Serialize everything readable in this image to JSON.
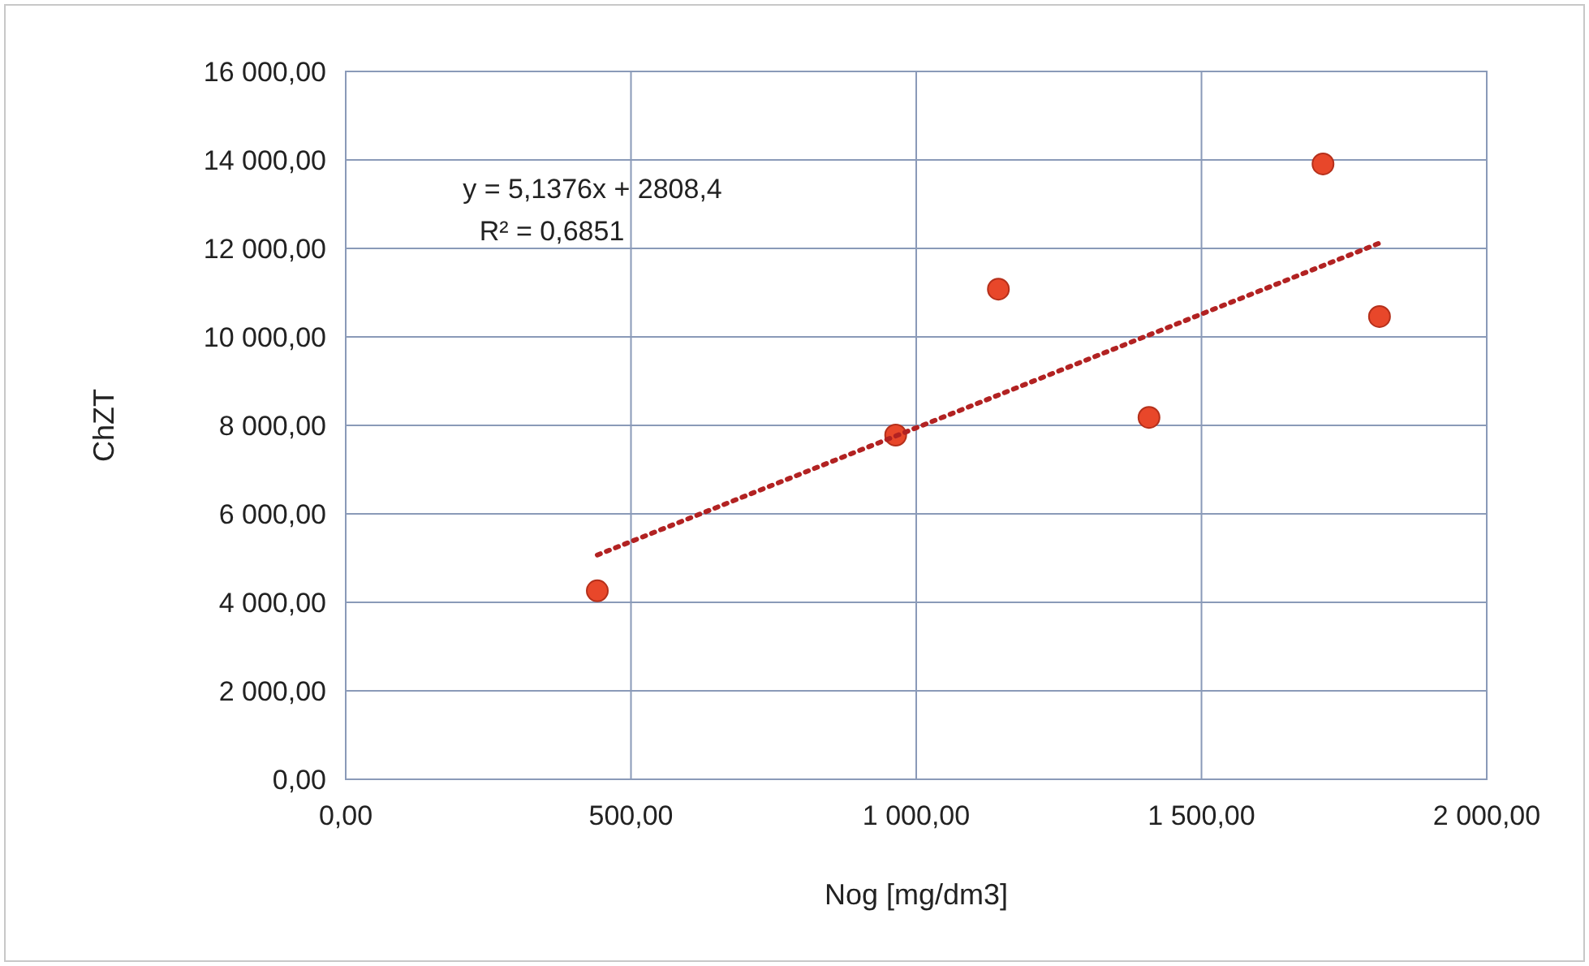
{
  "chart_data": {
    "type": "scatter",
    "xlabel": "Nog [mg/dm3]",
    "ylabel": "ChZT",
    "xlim": [
      0,
      2000
    ],
    "xticks": [
      {
        "value": 0,
        "label": "0,00"
      },
      {
        "value": 500,
        "label": "500,00"
      },
      {
        "value": 1000,
        "label": "1 000,00"
      },
      {
        "value": 1500,
        "label": "1 500,00"
      },
      {
        "value": 2000,
        "label": "2 000,00"
      }
    ],
    "ylim": [
      0,
      16000
    ],
    "yticks": [
      {
        "value": 0,
        "label": "0,00"
      },
      {
        "value": 2000,
        "label": "2 000,00"
      },
      {
        "value": 4000,
        "label": "4 000,00"
      },
      {
        "value": 6000,
        "label": "6 000,00"
      },
      {
        "value": 8000,
        "label": "8 000,00"
      },
      {
        "value": 10000,
        "label": "10 000,00"
      },
      {
        "value": 12000,
        "label": "12 000,00"
      },
      {
        "value": 14000,
        "label": "14 000,00"
      },
      {
        "value": 16000,
        "label": "16 000,00"
      }
    ],
    "grid": true,
    "marker": "circle",
    "series": [
      {
        "color": "#e8472a",
        "x": [
          441,
          964,
          1144,
          1408,
          1713,
          1812
        ],
        "values": [
          4260,
          7780,
          11080,
          8180,
          13910,
          10460
        ]
      },
      {
        "type": "line",
        "color": "#b22222",
        "line_style": "dotted",
        "marker": "none",
        "x": [
          441,
          1812
        ],
        "values": [
          5070,
          12120
        ]
      }
    ],
    "annotations": [
      "y = 5,1376x + 2808,4",
      "R² = 0,6851"
    ]
  }
}
